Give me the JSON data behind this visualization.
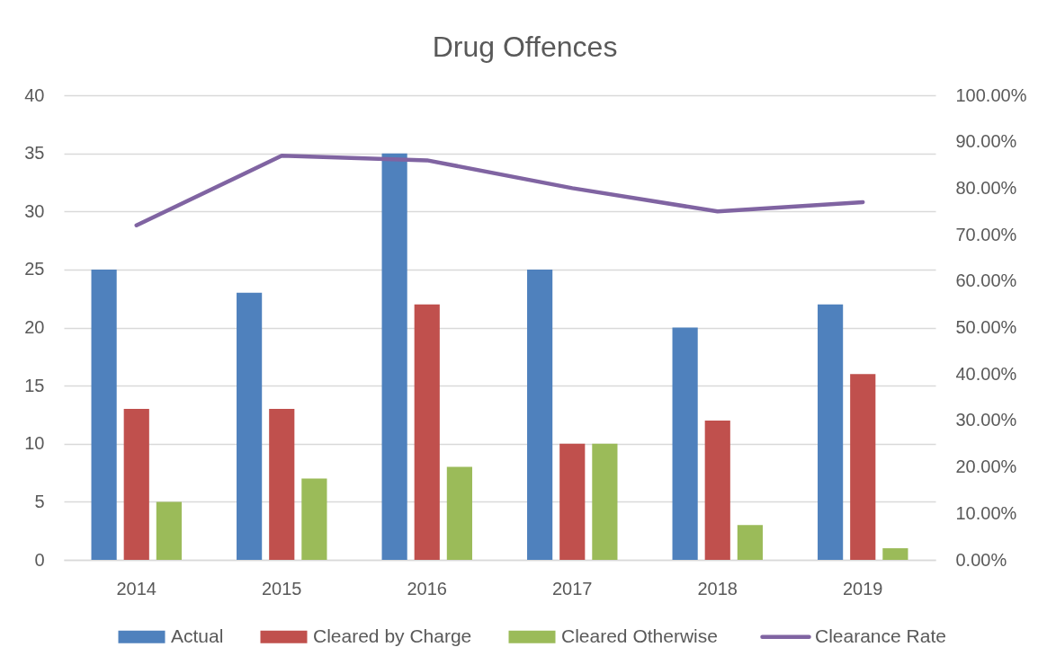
{
  "chart_data": {
    "type": "bar",
    "title": "Drug Offences",
    "categories": [
      "2014",
      "2015",
      "2016",
      "2017",
      "2018",
      "2019"
    ],
    "series": [
      {
        "name": "Actual",
        "color": "#4f81bd",
        "values": [
          25,
          23,
          35,
          25,
          20,
          22
        ]
      },
      {
        "name": "Cleared by Charge",
        "color": "#c0504d",
        "values": [
          13,
          13,
          22,
          10,
          12,
          16
        ]
      },
      {
        "name": "Cleared Otherwise",
        "color": "#9bbb59",
        "values": [
          5,
          7,
          8,
          10,
          3,
          1
        ]
      },
      {
        "name": "Clearance Rate",
        "type": "line",
        "axis": "y2",
        "color": "#8064a2",
        "values": [
          72,
          87,
          86,
          80,
          75,
          77
        ]
      }
    ],
    "ylim": [
      0,
      40
    ],
    "yticks": [
      0,
      5,
      10,
      15,
      20,
      25,
      30,
      35,
      40
    ],
    "y2lim": [
      0,
      100
    ],
    "y2ticks": [
      {
        "value": 0,
        "label": "0.00%"
      },
      {
        "value": 10,
        "label": "10.00%"
      },
      {
        "value": 20,
        "label": "20.00%"
      },
      {
        "value": 30,
        "label": "30.00%"
      },
      {
        "value": 40,
        "label": "40.00%"
      },
      {
        "value": 50,
        "label": "50.00%"
      },
      {
        "value": 60,
        "label": "60.00%"
      },
      {
        "value": 70,
        "label": "70.00%"
      },
      {
        "value": 80,
        "label": "80.00%"
      },
      {
        "value": 90,
        "label": "90.00%"
      },
      {
        "value": 100,
        "label": "100.00%"
      }
    ],
    "grid": "y",
    "legend": "bottom"
  }
}
